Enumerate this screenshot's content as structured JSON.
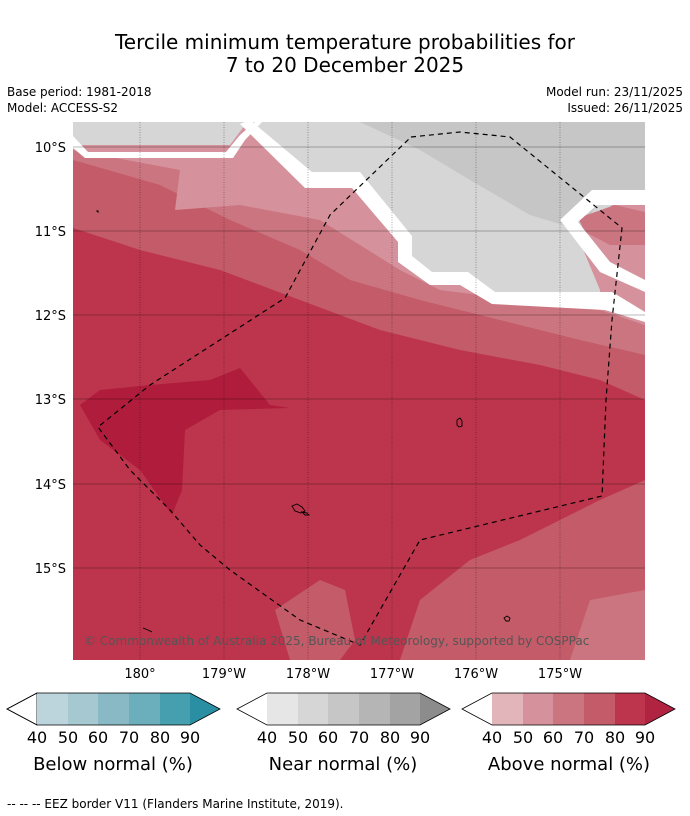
{
  "title": {
    "line1": "Tercile minimum temperature probabilities for",
    "line2": "7 to 20 December 2025"
  },
  "meta": {
    "base_period": "Base period: 1981-2018",
    "model": "Model: ACCESS-S2",
    "model_run": "Model run: 23/11/2025",
    "issued": "Issued: 26/11/2025"
  },
  "map": {
    "lat_labels": [
      "10°S",
      "11°S",
      "12°S",
      "13°S",
      "14°S",
      "15°S"
    ],
    "lon_labels": [
      "180°",
      "179°W",
      "178°W",
      "177°W",
      "176°W",
      "175°W"
    ],
    "copyright": "© Commonwealth of Australia 2025, Bureau of Meteorology, supported by COSPPac"
  },
  "legend": {
    "ticks": [
      "40",
      "50",
      "60",
      "70",
      "80",
      "90"
    ],
    "below": {
      "title": "Below normal (%)",
      "colors": [
        "#bcd5dd",
        "#a6c8d0",
        "#89b9c5",
        "#6baebc",
        "#459faf",
        "#2b8fa3"
      ]
    },
    "near": {
      "title": "Near normal (%)",
      "colors": [
        "#e6e6e6",
        "#d6d6d6",
        "#c6c6c6",
        "#b5b5b5",
        "#a3a3a3",
        "#8c8c8c"
      ]
    },
    "above": {
      "title": "Above normal (%)",
      "colors": [
        "#e2b5bb",
        "#d6929c",
        "#cb7580",
        "#c45b69",
        "#bc354d",
        "#b02341"
      ]
    }
  },
  "footer": "--  --  -- EEZ border V11 (Flanders Marine Institute, 2019)."
}
